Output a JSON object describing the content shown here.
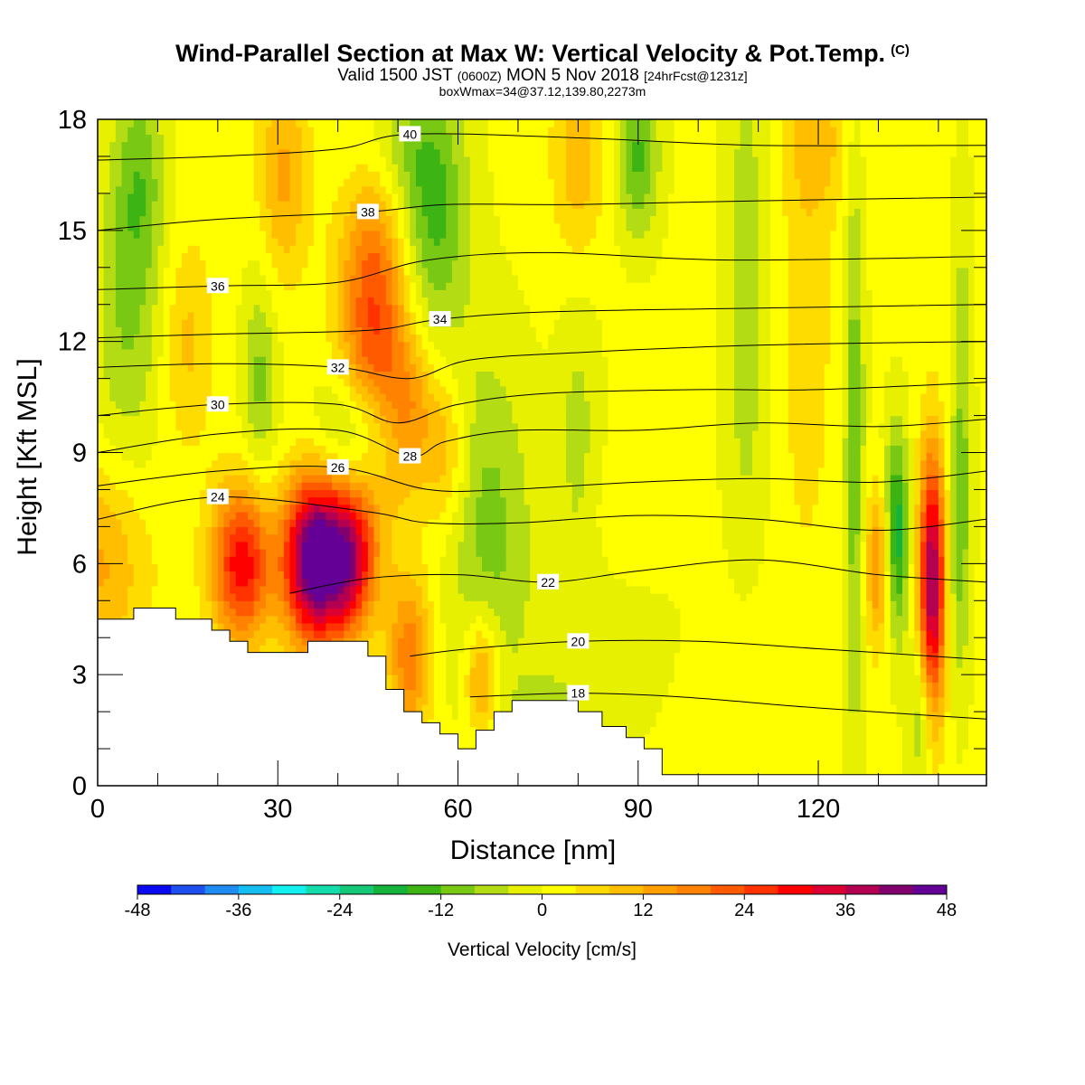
{
  "header": {
    "title": "Wind-Parallel Section at Max W: Vertical Velocity & Pot.Temp.",
    "copyright": "(C)",
    "valid_prefix": "Valid 1500 JST",
    "valid_utc": "(0600Z)",
    "valid_date": "MON 5 Nov 2018",
    "forecast": "[24hrFcst@1231z]",
    "box_info": "boxWmax=34@37.12,139.80,2273m"
  },
  "chart_data": {
    "type": "heatmap",
    "xlabel": "Distance [nm]",
    "ylabel": "Height [Kft MSL]",
    "xlim": [
      0,
      148
    ],
    "ylim": [
      0,
      18
    ],
    "xticks": [
      "0",
      "30",
      "60",
      "90",
      "120"
    ],
    "xtick_values": [
      0,
      30,
      60,
      90,
      120
    ],
    "yticks": [
      "0",
      "3",
      "6",
      "9",
      "12",
      "15",
      "18"
    ],
    "ytick_values": [
      0,
      3,
      6,
      9,
      12,
      15,
      18
    ],
    "colorbar": {
      "label": "Vertical Velocity [cm/s]",
      "ticks": [
        "-48",
        "-36",
        "-24",
        "-12",
        "0",
        "12",
        "24",
        "36",
        "48"
      ],
      "tick_values": [
        -48,
        -36,
        -24,
        -12,
        0,
        12,
        24,
        36,
        48
      ],
      "colors": [
        "#0a0af0",
        "#1e50f0",
        "#1e8cf0",
        "#14bef0",
        "#14f0f0",
        "#14dcaa",
        "#14c878",
        "#14b43c",
        "#3cb414",
        "#78c814",
        "#b4dc14",
        "#e6f000",
        "#ffff00",
        "#ffdc00",
        "#ffbe00",
        "#ffa000",
        "#ff8200",
        "#ff5a00",
        "#ff3200",
        "#ff0000",
        "#dc0032",
        "#b40050",
        "#82006e",
        "#640096"
      ]
    },
    "theta_contours": [
      {
        "label": "18",
        "points": [
          [
            62,
            2.4
          ],
          [
            80,
            2.5
          ],
          [
            97,
            2.4
          ],
          [
            120,
            2.1
          ],
          [
            148,
            1.8
          ]
        ]
      },
      {
        "label": "20",
        "points": [
          [
            52,
            3.5
          ],
          [
            62,
            3.7
          ],
          [
            80,
            3.9
          ],
          [
            100,
            3.9
          ],
          [
            120,
            3.7
          ],
          [
            148,
            3.4
          ]
        ]
      },
      {
        "label": "22",
        "points": [
          [
            32,
            5.2
          ],
          [
            45,
            5.6
          ],
          [
            60,
            5.7
          ],
          [
            75,
            5.5
          ],
          [
            90,
            5.8
          ],
          [
            110,
            6.1
          ],
          [
            130,
            5.7
          ],
          [
            148,
            5.5
          ]
        ]
      },
      {
        "label": "24",
        "points": [
          [
            0,
            7.2
          ],
          [
            20,
            7.8
          ],
          [
            45,
            7.4
          ],
          [
            55,
            7.1
          ],
          [
            70,
            7.1
          ],
          [
            90,
            7.3
          ],
          [
            110,
            7.2
          ],
          [
            130,
            6.9
          ],
          [
            148,
            7.2
          ]
        ]
      },
      {
        "label": "26",
        "points": [
          [
            0,
            8.1
          ],
          [
            20,
            8.5
          ],
          [
            40,
            8.6
          ],
          [
            55,
            8.0
          ],
          [
            68,
            8.0
          ],
          [
            90,
            8.2
          ],
          [
            110,
            8.3
          ],
          [
            130,
            8.2
          ],
          [
            148,
            8.5
          ]
        ]
      },
      {
        "label": "28",
        "points": [
          [
            0,
            9.0
          ],
          [
            20,
            9.5
          ],
          [
            40,
            9.6
          ],
          [
            52,
            8.9
          ],
          [
            58,
            9.3
          ],
          [
            70,
            9.6
          ],
          [
            90,
            9.6
          ],
          [
            110,
            9.8
          ],
          [
            130,
            9.7
          ],
          [
            148,
            9.9
          ]
        ]
      },
      {
        "label": "30",
        "points": [
          [
            0,
            10.0
          ],
          [
            20,
            10.3
          ],
          [
            40,
            10.3
          ],
          [
            50,
            9.8
          ],
          [
            60,
            10.3
          ],
          [
            75,
            10.6
          ],
          [
            100,
            10.7
          ],
          [
            120,
            10.7
          ],
          [
            148,
            10.9
          ]
        ]
      },
      {
        "label": "32",
        "points": [
          [
            0,
            11.3
          ],
          [
            20,
            11.4
          ],
          [
            40,
            11.3
          ],
          [
            52,
            11.0
          ],
          [
            62,
            11.5
          ],
          [
            80,
            11.7
          ],
          [
            110,
            11.9
          ],
          [
            148,
            12.0
          ]
        ]
      },
      {
        "label": "34",
        "points": [
          [
            0,
            12.1
          ],
          [
            20,
            12.2
          ],
          [
            45,
            12.3
          ],
          [
            57,
            12.6
          ],
          [
            75,
            12.8
          ],
          [
            110,
            12.9
          ],
          [
            148,
            13.0
          ]
        ]
      },
      {
        "label": "36",
        "points": [
          [
            0,
            13.4
          ],
          [
            20,
            13.5
          ],
          [
            40,
            13.6
          ],
          [
            55,
            14.2
          ],
          [
            75,
            14.4
          ],
          [
            105,
            14.2
          ],
          [
            148,
            14.3
          ]
        ]
      },
      {
        "label": "38",
        "points": [
          [
            0,
            15.0
          ],
          [
            20,
            15.3
          ],
          [
            45,
            15.5
          ],
          [
            58,
            15.7
          ],
          [
            80,
            15.7
          ],
          [
            110,
            15.8
          ],
          [
            148,
            15.9
          ]
        ]
      },
      {
        "label": "40",
        "points": [
          [
            0,
            16.9
          ],
          [
            20,
            17.0
          ],
          [
            40,
            17.2
          ],
          [
            52,
            17.6
          ],
          [
            80,
            17.5
          ],
          [
            110,
            17.3
          ],
          [
            148,
            17.3
          ]
        ]
      }
    ],
    "terrain": [
      [
        0,
        4.5
      ],
      [
        6,
        4.5
      ],
      [
        6,
        4.8
      ],
      [
        13,
        4.8
      ],
      [
        13,
        4.5
      ],
      [
        19,
        4.5
      ],
      [
        19,
        4.2
      ],
      [
        22,
        4.2
      ],
      [
        22,
        3.9
      ],
      [
        25,
        3.9
      ],
      [
        25,
        3.6
      ],
      [
        35,
        3.6
      ],
      [
        35,
        3.9
      ],
      [
        45,
        3.9
      ],
      [
        45,
        3.5
      ],
      [
        48,
        3.5
      ],
      [
        48,
        2.6
      ],
      [
        51,
        2.6
      ],
      [
        51,
        2.0
      ],
      [
        54,
        2.0
      ],
      [
        54,
        1.7
      ],
      [
        57,
        1.7
      ],
      [
        57,
        1.4
      ],
      [
        60,
        1.4
      ],
      [
        60,
        1.0
      ],
      [
        63,
        1.0
      ],
      [
        63,
        1.5
      ],
      [
        66,
        1.5
      ],
      [
        66,
        2.0
      ],
      [
        69,
        2.0
      ],
      [
        69,
        2.3
      ],
      [
        80,
        2.3
      ],
      [
        80,
        2.0
      ],
      [
        84,
        2.0
      ],
      [
        84,
        1.6
      ],
      [
        88,
        1.6
      ],
      [
        88,
        1.3
      ],
      [
        91,
        1.3
      ],
      [
        91,
        1.0
      ],
      [
        94,
        1.0
      ],
      [
        94,
        0.3
      ],
      [
        148,
        0.3
      ]
    ],
    "w_features": [
      {
        "x": 36,
        "z": 6.1,
        "sx": 3.5,
        "sz": 1.6,
        "w": 48
      },
      {
        "x": 24,
        "z": 6.0,
        "sx": 3.5,
        "sz": 1.5,
        "w": 30
      },
      {
        "x": 42,
        "z": 6.1,
        "sx": 3.0,
        "sz": 1.4,
        "w": 30
      },
      {
        "x": 139,
        "z": 5.5,
        "sx": 1.6,
        "sz": 2.5,
        "w": 40
      },
      {
        "x": 133,
        "z": 6.8,
        "sx": 1.5,
        "sz": 2.0,
        "w": -20
      },
      {
        "x": 130,
        "z": 6.0,
        "sx": 1.5,
        "sz": 1.5,
        "w": 16
      },
      {
        "x": 126,
        "z": 9.0,
        "sx": 1.2,
        "sz": 6.0,
        "w": -12
      },
      {
        "x": 46,
        "z": 12.5,
        "sx": 4.0,
        "sz": 3.5,
        "w": 24
      },
      {
        "x": 52,
        "z": 10.0,
        "sx": 3.0,
        "sz": 1.5,
        "w": 14
      },
      {
        "x": 58,
        "z": 9.0,
        "sx": 2.5,
        "sz": 1.5,
        "w": 10
      },
      {
        "x": 52,
        "z": 3.5,
        "sx": 2.5,
        "sz": 1.5,
        "w": 18
      },
      {
        "x": 64,
        "z": 3.0,
        "sx": 2.0,
        "sz": 1.2,
        "w": 16
      },
      {
        "x": 44,
        "z": 9.5,
        "sx": 5.0,
        "sz": 1.2,
        "w": -16
      },
      {
        "x": 56,
        "z": 15.5,
        "sx": 4.0,
        "sz": 2.5,
        "w": -14
      },
      {
        "x": 48,
        "z": 17.2,
        "sx": 5.0,
        "sz": 1.4,
        "w": -10
      },
      {
        "x": 90,
        "z": 17.0,
        "sx": 2.5,
        "sz": 1.5,
        "w": -14
      },
      {
        "x": 27,
        "z": 11.0,
        "sx": 2.0,
        "sz": 2.0,
        "w": -10
      },
      {
        "x": 5,
        "z": 12.5,
        "sx": 4.0,
        "sz": 3.0,
        "w": -9
      },
      {
        "x": 7,
        "z": 16.5,
        "sx": 3.0,
        "sz": 2.0,
        "w": -10
      },
      {
        "x": 65,
        "z": 7.0,
        "sx": 5.0,
        "sz": 3.5,
        "w": -10
      },
      {
        "x": 90,
        "z": 5.0,
        "sx": 12.0,
        "sz": 2.5,
        "w": -7
      },
      {
        "x": 90,
        "z": 7.0,
        "sx": 8.0,
        "sz": 1.5,
        "w": 6
      },
      {
        "x": 108,
        "z": 13.5,
        "sx": 2.5,
        "sz": 5.0,
        "w": -8
      },
      {
        "x": 80,
        "z": 9.5,
        "sx": 2.5,
        "sz": 3.0,
        "w": -6
      },
      {
        "x": 100,
        "z": 4.0,
        "sx": 15.0,
        "sz": 2.0,
        "w": 4
      },
      {
        "x": 118,
        "z": 12.0,
        "sx": 3.0,
        "sz": 4.0,
        "w": 6
      },
      {
        "x": 80,
        "z": 17.0,
        "sx": 3.0,
        "sz": 2.0,
        "w": 10
      },
      {
        "x": 31,
        "z": 16.5,
        "sx": 3.0,
        "sz": 2.0,
        "w": 12
      },
      {
        "x": 15,
        "z": 12.0,
        "sx": 3.0,
        "sz": 2.0,
        "w": 8
      },
      {
        "x": 143,
        "z": 6.0,
        "sx": 1.5,
        "sz": 2.5,
        "w": -8
      },
      {
        "x": 120,
        "z": 17.5,
        "sx": 4.0,
        "sz": 1.5,
        "w": 8
      },
      {
        "x": 75,
        "z": 1.5,
        "sx": 4.0,
        "sz": 1.0,
        "w": -8
      },
      {
        "x": 137,
        "z": 2.0,
        "sx": 1.5,
        "sz": 1.5,
        "w": -10
      },
      {
        "x": 144,
        "z": 10.5,
        "sx": 1.2,
        "sz": 4.0,
        "w": -8
      },
      {
        "x": 0,
        "z": 6.0,
        "sx": 6.0,
        "sz": 2.0,
        "w": 12
      }
    ]
  }
}
